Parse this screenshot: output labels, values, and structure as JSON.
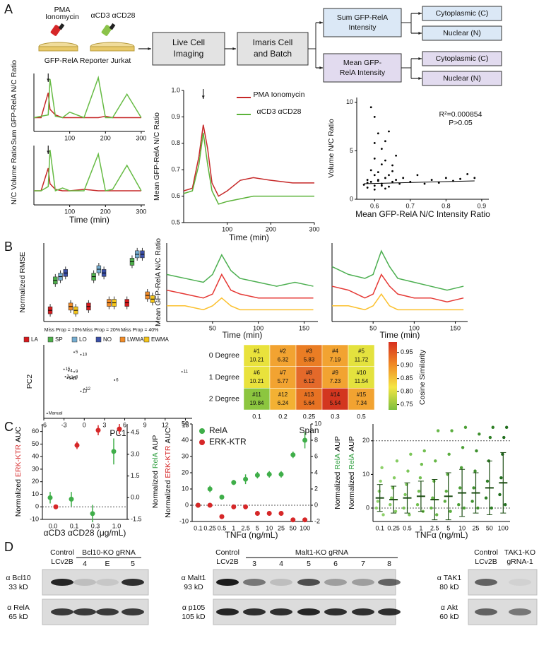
{
  "panel_labels": [
    "A",
    "B",
    "C",
    "D"
  ],
  "diagram": {
    "reagents": [
      {
        "lines": [
          "PMA",
          "Ionomycin"
        ],
        "color": "#d62728"
      },
      {
        "lines": [
          "αCD3 αCD28"
        ],
        "color": "#8bc34a"
      }
    ],
    "cells": "GFP-RelA Reporter Jurkat",
    "steps": [
      {
        "lines": [
          "Live Cell",
          "Imaging"
        ]
      },
      {
        "lines": [
          "Imaris Cell",
          "and Batch"
        ]
      }
    ],
    "branches": [
      {
        "lines": [
          "Sum GFP-RelA",
          "Intensity"
        ],
        "color": "#dbe8f6",
        "outputs": [
          "Cytoplasmic (C)",
          "Nuclear (N)"
        ]
      },
      {
        "lines": [
          "Mean GFP-",
          "RelA Intensity"
        ],
        "color": "#e2dbef",
        "outputs": [
          "Cytoplasmic (C)",
          "Nuclear (N)"
        ]
      }
    ]
  },
  "chart_data": [
    {
      "type": "line",
      "ylabel": "Sum GFP-RelA N/C Ratio",
      "xlim": [
        0,
        310
      ],
      "ylim": [
        0,
        4.2
      ],
      "xticks": [
        100,
        200,
        300
      ],
      "x": [
        0,
        20,
        40,
        45,
        60,
        80,
        100,
        140,
        180,
        200,
        220,
        260,
        300
      ],
      "series": [
        {
          "color": "#c62828",
          "values": [
            1.0,
            1.0,
            2.8,
            1.6,
            1.2,
            1.0,
            1.0,
            1.0,
            1.0,
            1.1,
            1.0,
            1.0,
            1.0
          ]
        },
        {
          "color": "#66bb44",
          "values": [
            1.0,
            1.1,
            1.2,
            3.8,
            1.1,
            1.0,
            1.4,
            1.0,
            3.9,
            1.0,
            1.0,
            2.7,
            1.0
          ]
        }
      ]
    },
    {
      "type": "line",
      "ylabel": "N/C Volume Ratio",
      "xlabel": "Time (min)",
      "xlim": [
        0,
        310
      ],
      "ylim": [
        0,
        4.2
      ],
      "xticks": [
        100,
        200,
        300
      ],
      "x": [
        0,
        20,
        40,
        45,
        60,
        80,
        100,
        140,
        180,
        200,
        220,
        260,
        300
      ],
      "series": [
        {
          "color": "#c62828",
          "values": [
            1.0,
            1.0,
            2.6,
            1.5,
            1.1,
            1.0,
            1.0,
            1.1,
            1.0,
            1.0,
            1.0,
            1.0,
            1.0
          ]
        },
        {
          "color": "#66bb44",
          "values": [
            1.0,
            1.0,
            1.3,
            3.9,
            1.0,
            1.2,
            1.0,
            1.0,
            3.6,
            1.0,
            1.1,
            2.8,
            1.0
          ]
        }
      ]
    },
    {
      "type": "line",
      "ylabel": "Mean GFP-RelA N/C Ratio",
      "xlabel": "Time (min)",
      "xlim": [
        0,
        300
      ],
      "ylim": [
        0.5,
        1.0
      ],
      "yticks": [
        0.5,
        0.6,
        0.7,
        0.8,
        0.9,
        {
          "value": 1.0,
          "label": "1.0"
        }
      ],
      "xticks": [
        100,
        200,
        300
      ],
      "legend": "upper right",
      "x": [
        0,
        20,
        35,
        45,
        55,
        65,
        80,
        100,
        130,
        160,
        200,
        250,
        300
      ],
      "series": [
        {
          "name": "PMA Ionomycin",
          "color": "#c62828",
          "values": [
            0.62,
            0.63,
            0.75,
            0.87,
            0.78,
            0.65,
            0.6,
            0.62,
            0.66,
            0.67,
            0.66,
            0.65,
            0.65
          ]
        },
        {
          "name": "αCD3 αCD28",
          "color": "#5cb33a",
          "values": [
            0.61,
            0.62,
            0.72,
            0.84,
            0.72,
            0.62,
            0.57,
            0.58,
            0.59,
            0.6,
            0.6,
            0.6,
            0.6
          ]
        }
      ]
    },
    {
      "type": "scatter",
      "ylabel": "Volume N/C Ratio",
      "xlabel": "Mean GFP-RelA N/C Intensity Ratio",
      "xlim": [
        0.55,
        0.92
      ],
      "ylim": [
        0,
        10.5
      ],
      "xticks": [
        0.6,
        0.7,
        0.8,
        0.9
      ],
      "yticks": [
        0,
        5,
        10
      ],
      "color": "#000000",
      "annotations": [
        "R²=0.000854",
        "P>0.05"
      ],
      "x": [
        0.57,
        0.58,
        0.58,
        0.59,
        0.59,
        0.6,
        0.6,
        0.6,
        0.61,
        0.61,
        0.62,
        0.62,
        0.63,
        0.63,
        0.64,
        0.64,
        0.65,
        0.65,
        0.66,
        0.66,
        0.67,
        0.68,
        0.6,
        0.59,
        0.61,
        0.62,
        0.63,
        0.64,
        0.6,
        0.58,
        0.7,
        0.72,
        0.74,
        0.76,
        0.78,
        0.8,
        0.82,
        0.84,
        0.86,
        0.88,
        0.6,
        0.61,
        0.62,
        0.63,
        0.65
      ],
      "values": [
        1.5,
        2.0,
        1.2,
        9.5,
        1.8,
        8.5,
        2.5,
        1.4,
        6.8,
        1.9,
        5.2,
        1.6,
        4.0,
        2.2,
        7.0,
        1.3,
        3.5,
        1.8,
        4.5,
        2.0,
        1.6,
        2.2,
        1.0,
        3.0,
        2.8,
        3.6,
        1.1,
        2.5,
        5.8,
        1.7,
        1.8,
        2.5,
        1.6,
        2.0,
        1.7,
        2.2,
        1.9,
        2.1,
        2.6,
        2.2,
        4.2,
        2.0,
        1.4,
        6.0,
        2.9
      ],
      "fit": {
        "x": [
          0.57,
          0.88
        ],
        "values": [
          1.6,
          1.9
        ]
      }
    },
    {
      "type": "box",
      "ylabel": "Normalized RMSE",
      "ylim": [
        0.25,
        0.46
      ],
      "legend": "bottom",
      "categories": [
        "Miss Prop = 10%",
        "Miss Prop = 20%",
        "Miss Prop = 40%"
      ],
      "series": [
        {
          "name": "LA",
          "color": "#d7191c",
          "values": [
            0.28,
            0.29,
            0.3
          ]
        },
        {
          "name": "SP",
          "color": "#4daf4a",
          "values": [
            0.36,
            0.37,
            0.41
          ]
        },
        {
          "name": "LO",
          "color": "#74add1",
          "values": [
            0.37,
            0.39,
            0.43
          ]
        },
        {
          "name": "NO",
          "color": "#3a4fa8",
          "values": [
            0.38,
            0.38,
            0.43
          ]
        },
        {
          "name": "LWMA",
          "color": "#f28c28",
          "values": [
            0.29,
            0.3,
            0.32
          ]
        },
        {
          "name": "EWMA",
          "color": "#f5c518",
          "values": [
            0.28,
            0.3,
            0.31
          ]
        }
      ]
    },
    {
      "type": "line",
      "ylabel": "Mean GFP-RelA N/C Ratio",
      "xlabel": "Time (min)",
      "xlim": [
        0,
        165
      ],
      "ylim": [
        0.3,
        1.3
      ],
      "xticks": [
        50,
        100,
        150
      ],
      "x": [
        0,
        20,
        40,
        50,
        60,
        70,
        80,
        100,
        120,
        140,
        160
      ],
      "series": [
        {
          "color": "#4caf50",
          "values": [
            0.9,
            0.85,
            0.8,
            0.9,
            1.15,
            0.95,
            0.85,
            0.8,
            0.75,
            0.8,
            0.75
          ]
        },
        {
          "color": "#e53935",
          "values": [
            0.7,
            0.65,
            0.6,
            0.65,
            0.9,
            0.7,
            0.65,
            0.6,
            0.6,
            0.6,
            0.6
          ]
        },
        {
          "color": "#fbc02d",
          "values": [
            0.5,
            0.5,
            0.45,
            0.5,
            0.6,
            0.5,
            0.45,
            0.45,
            0.45,
            0.45,
            0.45
          ]
        }
      ]
    },
    {
      "type": "line",
      "xlabel": "Time (min)",
      "xlim": [
        0,
        165
      ],
      "ylim": [
        0.3,
        1.3
      ],
      "xticks": [
        50,
        100,
        150
      ],
      "x": [
        0,
        20,
        40,
        50,
        60,
        70,
        80,
        100,
        120,
        140,
        160
      ],
      "series": [
        {
          "color": "#4caf50",
          "values": [
            1.0,
            0.9,
            0.85,
            0.9,
            1.2,
            1.0,
            0.85,
            0.8,
            0.75,
            0.7,
            0.75
          ]
        },
        {
          "color": "#e53935",
          "values": [
            0.75,
            0.7,
            0.6,
            0.65,
            0.9,
            0.75,
            0.65,
            0.6,
            0.6,
            0.55,
            0.6
          ]
        },
        {
          "color": "#fbc02d",
          "values": [
            0.5,
            0.5,
            0.45,
            0.5,
            0.65,
            0.5,
            0.45,
            0.45,
            0.45,
            0.45,
            0.45
          ]
        }
      ]
    },
    {
      "type": "scatter",
      "ylabel": "PC2",
      "xlabel": "PC1",
      "xlim": [
        -6,
        16
      ],
      "ylim": [
        -9,
        6
      ],
      "xticks": [
        -6,
        -3,
        0,
        3,
        6,
        9,
        12,
        15
      ],
      "color": "#333333",
      "labels": [
        "1",
        "2",
        "3",
        "4",
        "5",
        "6",
        "7",
        "8",
        "9",
        "10",
        "11",
        "12",
        "13",
        "14",
        "15",
        "Manual"
      ],
      "x": [
        -2.5,
        -2.2,
        -2.8,
        -2.3,
        -1.5,
        4.5,
        -1.7,
        -1.5,
        -1.5,
        -0.5,
        14.5,
        0,
        -0.5,
        -2,
        -3,
        -5.5
      ],
      "values": [
        -0.8,
        -0.7,
        -0.5,
        0.7,
        4.5,
        -1.2,
        -0.8,
        -0.6,
        0.5,
        4,
        0.5,
        -3,
        -3.5,
        -0.9,
        1,
        -8
      ]
    },
    {
      "type": "heatmap",
      "xlabel": "Span",
      "rows": [
        "0 Degree",
        "1 Degree",
        "2 Degree"
      ],
      "columns": [
        "0.1",
        "0.2",
        "0.25",
        "0.3",
        "0.5"
      ],
      "ids": [
        [
          "#1",
          "#2",
          "#3",
          "#4",
          "#5"
        ],
        [
          "#6",
          "#7",
          "#8",
          "#9",
          "#10"
        ],
        [
          "#11",
          "#12",
          "#13",
          "#14",
          "#15"
        ]
      ],
      "values": [
        [
          10.21,
          6.32,
          5.83,
          7.19,
          11.72
        ],
        [
          10.21,
          5.77,
          6.12,
          7.23,
          11.54
        ],
        [
          19.84,
          6.24,
          5.64,
          5.54,
          7.34
        ]
      ],
      "colors": [
        [
          "#e9e23c",
          "#f2a331",
          "#ea7d24",
          "#f2a331",
          "#e4e23e"
        ],
        [
          "#e9e23c",
          "#f2a331",
          "#e4692a",
          "#f2a331",
          "#e4e23e"
        ],
        [
          "#8cc63f",
          "#f3b133",
          "#e77223",
          "#d3361f",
          "#f2a331"
        ]
      ],
      "colorbar": {
        "title": "Cosine Similarity",
        "lim": [
          0.73,
          0.99
        ],
        "ticks": [
          0.75,
          {
            "value": 0.8,
            "label": "0.80"
          },
          0.85,
          {
            "value": 0.9,
            "label": "0.90"
          },
          0.95
        ],
        "colors": [
          "#7cbf3f",
          "#f5e642",
          "#f08a24",
          "#d7301f"
        ]
      }
    },
    {
      "type": "errorbar",
      "ylabel": [
        "Normalized",
        "ERK-KTR",
        "AUC"
      ],
      "ylabel_colors": [
        "#000000",
        "#d62728",
        "#000000"
      ],
      "y2label": [
        "Normalized",
        "RelA",
        "AUP"
      ],
      "y2label_colors": [
        "#000000",
        "#2e9e3e",
        "#000000"
      ],
      "xlabel": "αCD3 αCD28 (μg/mL)",
      "categories": [
        "0.0",
        "0.1",
        "0.3",
        "1.0"
      ],
      "ylim": [
        -10,
        66
      ],
      "yticks": [
        -10,
        0,
        10,
        20,
        30,
        40,
        50,
        60
      ],
      "y2lim": [
        -1.5,
        5.1
      ],
      "y2ticks": [
        -1.5,
        {
          "value": 0,
          "label": "0.0"
        },
        1.5,
        {
          "value": 3,
          "label": "3.0"
        },
        4.5
      ],
      "hlines": [
        0
      ],
      "series": [
        {
          "color": "#d62728",
          "values": [
            0,
            49,
            61,
            62
          ],
          "errors": [
            0.5,
            3,
            4,
            4
          ]
        },
        {
          "color": "#3fae49",
          "axis": "y2",
          "values": [
            0.0,
            -0.1,
            -1.1,
            3.2
          ],
          "errors": [
            0.4,
            0.5,
            0.6,
            0.9
          ]
        }
      ]
    },
    {
      "type": "errorbar",
      "ylabel": [
        "Normalized",
        "ERK-KTR",
        "AUC"
      ],
      "ylabel_colors": [
        "#000000",
        "#d62728",
        "#000000"
      ],
      "y2label": [
        "Normalized",
        "RelA",
        "AUP"
      ],
      "y2label_colors": [
        "#000000",
        "#2e9e3e",
        "#000000"
      ],
      "xlabel": "TNFα (ng/mL)",
      "categories": [
        "0.1",
        "0.25",
        "0.5",
        "1",
        "2.5",
        "5",
        "10",
        "25",
        "50",
        "100"
      ],
      "ylim": [
        -10,
        50
      ],
      "yticks": [
        -10,
        0,
        10,
        20,
        30,
        40,
        50
      ],
      "y2lim": [
        -2,
        10
      ],
      "y2ticks": [
        -2,
        0,
        2,
        4,
        6,
        8,
        10
      ],
      "hlines": [
        0
      ],
      "legend": "upper left",
      "series": [
        {
          "name": "RelA",
          "color": "#3fae49",
          "axis": "y2",
          "values": [
            0,
            2,
            1,
            2.8,
            3.2,
            3.7,
            3.8,
            3.8,
            6.2,
            8
          ],
          "errors": [
            0.3,
            0.4,
            0.3,
            0.3,
            0.6,
            0.4,
            0.4,
            0.4,
            0.4,
            1.0
          ]
        },
        {
          "name": "ERK-KTR",
          "color": "#d62728",
          "values": [
            0,
            0,
            -7,
            -1,
            -1,
            -5,
            -5,
            -5,
            -9,
            -9
          ],
          "errors": [
            0.5,
            0.5,
            1,
            0.8,
            0.5,
            0.5,
            0.5,
            0.8,
            0.5,
            0.5
          ]
        }
      ]
    },
    {
      "type": "strip",
      "ylabel": [
        "Normalized",
        "RelA",
        "AUP"
      ],
      "ylabel_colors": [
        "#000000",
        "#2e9e3e",
        "#000000"
      ],
      "xlabel": "TNFα (ng/mL)",
      "categories": [
        "0.1",
        "0.25",
        "0.5",
        "1",
        "2.5",
        "5",
        "10",
        "25",
        "50",
        "100"
      ],
      "ylim": [
        -4,
        25
      ],
      "yticks": [
        0,
        10,
        20
      ],
      "hlines": [
        0,
        20
      ],
      "colors": [
        "#8fd16b",
        "#86cc62",
        "#7cc659",
        "#72bf50",
        "#67b747",
        "#5aad3e",
        "#4c9f36",
        "#3e902e",
        "#2f7f26",
        "#216e1e"
      ],
      "means": [
        3,
        2.5,
        3,
        3.5,
        2.5,
        3.5,
        4.5,
        4.5,
        6,
        7.5
      ],
      "sds": [
        4,
        4,
        4.5,
        4.5,
        6,
        7,
        7,
        6,
        8,
        9
      ],
      "points": [
        [
          0,
          2,
          5,
          8,
          12,
          -2
        ],
        [
          1,
          3,
          6,
          9,
          -1,
          14
        ],
        [
          0,
          4,
          7,
          11,
          -2,
          16
        ],
        [
          1,
          5,
          9,
          13,
          -1,
          17
        ],
        [
          0,
          3,
          8,
          14,
          -2,
          23
        ],
        [
          2,
          5,
          10,
          16,
          -1,
          23
        ],
        [
          1,
          6,
          12,
          18,
          0,
          24
        ],
        [
          2,
          6,
          11,
          17,
          0,
          22
        ],
        [
          3,
          8,
          14,
          21,
          0,
          24
        ],
        [
          4,
          9,
          16,
          21,
          1,
          24
        ]
      ]
    }
  ],
  "blots": [
    {
      "control": [
        "Control",
        "LCv2B"
      ],
      "header": [
        "Bcl10-KO gRNA"
      ],
      "lanes": [
        "4",
        "E",
        "5"
      ],
      "lane_colors": [
        "#d62728",
        "#000000",
        "#000000"
      ],
      "rows": [
        [
          "α Bcl10",
          "33 kD"
        ],
        [
          "α RelA",
          "65 kD"
        ]
      ]
    },
    {
      "control": [
        "Control",
        "LCv2B"
      ],
      "header": [
        "Malt1-KO gRNA"
      ],
      "lanes": [
        "3",
        "4",
        "5",
        "6",
        "7",
        "8"
      ],
      "lane_colors": [
        "#000000",
        "#000000",
        "#000000",
        "#000000",
        "#d62728",
        "#000000"
      ],
      "rows": [
        [
          "α Malt1",
          "93 kD"
        ],
        [
          "α p105",
          "105 kD"
        ]
      ]
    },
    {
      "control": [
        "Control",
        "LCv2B"
      ],
      "header": [
        "TAK1-KO",
        "gRNA-1"
      ],
      "lanes": [],
      "lane_colors": [],
      "rows": [
        [
          "α TAK1",
          "80 kD"
        ],
        [
          "α Akt",
          "60 kD"
        ]
      ]
    }
  ]
}
